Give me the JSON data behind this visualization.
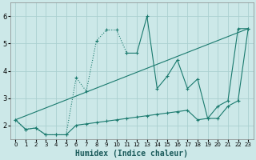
{
  "xlabel": "Humidex (Indice chaleur)",
  "bg_color": "#cce8e8",
  "grid_color": "#aad0d0",
  "line_color": "#1a7a6e",
  "xlim": [
    -0.5,
    23.5
  ],
  "ylim": [
    1.5,
    6.5
  ],
  "yticks": [
    2,
    3,
    4,
    5,
    6
  ],
  "xticks": [
    0,
    1,
    2,
    3,
    4,
    5,
    6,
    7,
    8,
    9,
    10,
    11,
    12,
    13,
    14,
    15,
    16,
    17,
    18,
    19,
    20,
    21,
    22,
    23
  ],
  "series1_x": [
    0,
    1,
    2,
    3,
    4,
    5,
    6,
    7,
    8,
    9,
    10,
    11
  ],
  "series1_y": [
    2.2,
    1.85,
    1.9,
    1.65,
    1.65,
    1.65,
    3.75,
    3.25,
    5.1,
    5.5,
    5.5,
    4.65
  ],
  "series2_x": [
    11,
    12,
    13,
    14,
    15,
    16,
    17,
    18,
    19,
    20,
    21,
    22,
    23
  ],
  "series2_y": [
    4.65,
    4.65,
    6.0,
    3.35,
    3.8,
    4.4,
    3.35,
    3.7,
    2.25,
    2.7,
    2.9,
    5.55,
    5.55
  ],
  "series3_x": [
    0,
    1,
    2,
    3,
    4,
    5,
    6,
    7,
    8,
    9,
    10,
    11,
    12,
    13,
    14,
    15,
    16,
    17,
    18,
    19,
    20,
    21,
    22,
    23
  ],
  "series3_y": [
    2.2,
    1.85,
    1.9,
    1.65,
    1.65,
    1.65,
    2.0,
    2.05,
    2.1,
    2.15,
    2.2,
    2.25,
    2.3,
    2.35,
    2.4,
    2.45,
    2.5,
    2.55,
    2.2,
    2.25,
    2.25,
    2.7,
    2.9,
    5.55
  ],
  "series4_x": [
    0,
    23
  ],
  "series4_y": [
    2.2,
    5.55
  ],
  "markersize": 3.5
}
